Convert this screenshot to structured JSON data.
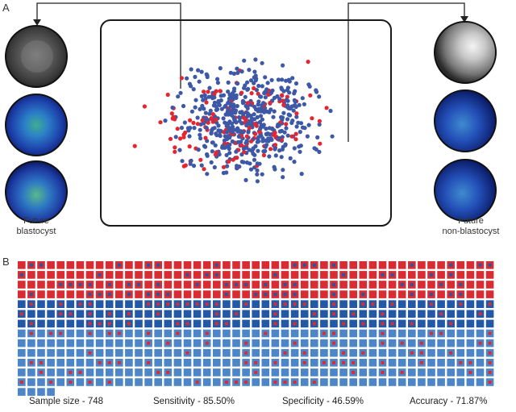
{
  "panel_a": {
    "letter": "A",
    "left_label_line1": "Future",
    "left_label_line2": "blastocyst",
    "right_label_line1": "Future",
    "right_label_line2": "non-blastocyst",
    "colors": {
      "blastocyst": "#e52530",
      "non_blastocyst": "#3c58a6",
      "frame": "#1a1a1a"
    }
  },
  "panel_b": {
    "letter": "B",
    "sample_size_text": "Sample size - 748",
    "sensitivity_text": "Sensitivity - 85.50%",
    "specificity_text": "Specificity - 46.59%",
    "accuracy_text": "Accuracy - 71.87%",
    "colors": {
      "red_cell": "#d92b32",
      "dark_blue_cell": "#2358a6",
      "light_blue_cell": "#4d86c8"
    }
  }
}
